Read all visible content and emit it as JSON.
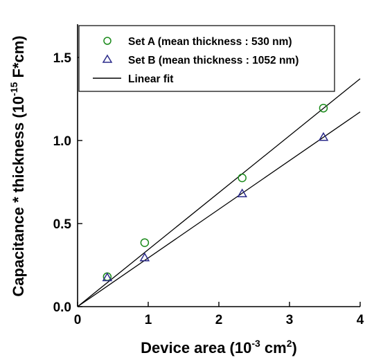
{
  "chart_data": {
    "type": "scatter",
    "xlabel": "Device area (10",
    "xlabel_exp": "-3",
    "xlabel_unit": " cm",
    "xlabel_unit_exp": "2",
    "xlabel_end": ")",
    "ylabel": "Capacitance * thickness (10",
    "ylabel_exp": "-15",
    "ylabel_end": " F*cm)",
    "xlim": [
      0,
      4
    ],
    "ylim": [
      0,
      1.7
    ],
    "xticks": [
      "0",
      "1",
      "2",
      "3",
      "4"
    ],
    "xtick_values": [
      0,
      1,
      2,
      3,
      4
    ],
    "yticks": [
      "0.0",
      "0.5",
      "1.0",
      "1.5"
    ],
    "ytick_values": [
      0,
      0.5,
      1.0,
      1.5
    ],
    "grid": false,
    "legend_position": "top-left",
    "series": [
      {
        "name": "Set A (mean thickness : 530 nm)",
        "marker": "circle",
        "color": "#1a8a1a",
        "x": [
          0.42,
          0.95,
          2.33,
          3.48
        ],
        "y": [
          0.18,
          0.385,
          0.775,
          1.195
        ]
      },
      {
        "name": "Set B (mean thickness : 1052 nm)",
        "marker": "triangle",
        "color": "#2a2a8a",
        "x": [
          0.42,
          0.95,
          2.33,
          3.48
        ],
        "y": [
          0.175,
          0.295,
          0.68,
          1.02
        ]
      }
    ],
    "fits": [
      {
        "name": "Linear fit",
        "slope": 0.343,
        "intercept": 0
      },
      {
        "slope": 0.293,
        "intercept": 0
      }
    ]
  }
}
